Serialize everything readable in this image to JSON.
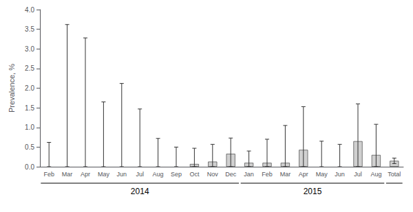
{
  "chart_data": {
    "type": "bar",
    "ylabel": "Prevalence, %",
    "categories": [
      "Feb",
      "Mar",
      "Apr",
      "May",
      "Jun",
      "Jul",
      "Aug",
      "Sep",
      "Oct",
      "Nov",
      "Dec",
      "Jan",
      "Feb",
      "Mar",
      "Apr",
      "May",
      "Jun",
      "Jul",
      "Aug",
      "Total"
    ],
    "values": [
      0.0,
      0.0,
      0.0,
      0.0,
      0.0,
      0.0,
      0.0,
      0.0,
      0.07,
      0.13,
      0.33,
      0.1,
      0.1,
      0.1,
      0.43,
      0.0,
      0.0,
      0.65,
      0.3,
      0.15
    ],
    "ci_lower": [
      0.0,
      0.0,
      0.0,
      0.0,
      0.0,
      0.0,
      0.0,
      0.0,
      0.0,
      0.0,
      0.0,
      0.0,
      0.0,
      0.0,
      0.0,
      0.0,
      0.0,
      0.0,
      0.0,
      0.08
    ],
    "ci_upper": [
      0.62,
      3.62,
      3.28,
      1.65,
      2.12,
      1.47,
      0.72,
      0.5,
      0.47,
      0.57,
      0.73,
      0.4,
      0.7,
      1.05,
      1.53,
      0.65,
      0.57,
      1.6,
      1.08,
      0.22
    ],
    "color": "#d0d0d0",
    "ylim": [
      0,
      4.0
    ],
    "yticks": [
      {
        "value": 0.0,
        "label": "0.0"
      },
      0.5,
      {
        "value": 1.0,
        "label": "1.0"
      },
      1.5,
      {
        "value": 2.0,
        "label": "2.0"
      },
      2.5,
      {
        "value": 3.0,
        "label": "3.0"
      },
      3.5,
      {
        "value": 4.0,
        "label": "4.0"
      }
    ],
    "grid": false,
    "groups": [
      {
        "label": "2014",
        "start": 0,
        "end": 10
      },
      {
        "label": "2015",
        "start": 11,
        "end": 18
      },
      {
        "start": 19,
        "end": 19
      }
    ]
  }
}
